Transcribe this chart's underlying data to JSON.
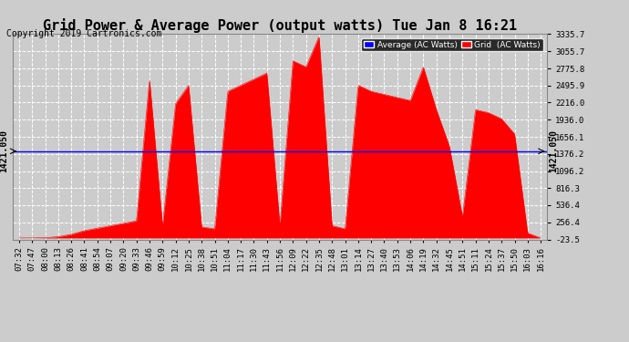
{
  "title": "Grid Power & Average Power (output watts) Tue Jan 8 16:21",
  "copyright": "Copyright 2019 Cartronics.com",
  "yticks_right": [
    3335.7,
    3055.7,
    2775.8,
    2495.9,
    2216.0,
    1936.0,
    1656.1,
    1376.2,
    1096.2,
    816.3,
    536.4,
    256.4,
    -23.5
  ],
  "ymin": -23.5,
  "ymax": 3335.7,
  "average_value": 1421.05,
  "average_label": "1421.050",
  "legend_average": "Average (AC Watts)",
  "legend_grid": "Grid  (AC Watts)",
  "fill_color": "#FF0000",
  "line_color": "#FF0000",
  "average_line_color": "#0000FF",
  "bg_color": "#CCCCCC",
  "plot_bg_color": "#CCCCCC",
  "grid_color": "#FFFFFF",
  "title_fontsize": 11,
  "copyright_fontsize": 7,
  "tick_fontsize": 6.5,
  "annotation_fontsize": 7
}
